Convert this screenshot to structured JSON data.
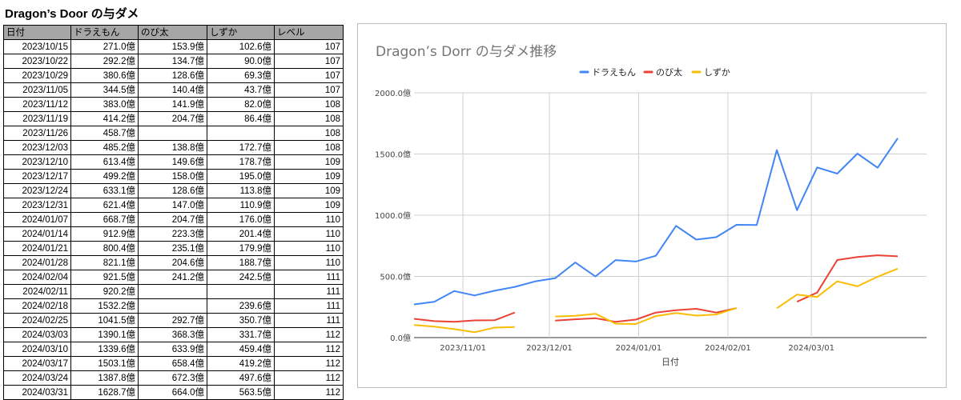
{
  "page_title": "Dragon’s Door の与ダメ",
  "table": {
    "headers": [
      "日付",
      "ドラえもん",
      "のび太",
      "しずか",
      "レベル"
    ],
    "rows": [
      [
        "2023/10/15",
        "271.0億",
        "153.9億",
        "102.6億",
        "107"
      ],
      [
        "2023/10/22",
        "292.2億",
        "134.7億",
        "90.0億",
        "107"
      ],
      [
        "2023/10/29",
        "380.6億",
        "128.6億",
        "69.3億",
        "107"
      ],
      [
        "2023/11/05",
        "344.5億",
        "140.4億",
        "43.7億",
        "107"
      ],
      [
        "2023/11/12",
        "383.0億",
        "141.9億",
        "82.0億",
        "108"
      ],
      [
        "2023/11/19",
        "414.2億",
        "204.7億",
        "86.4億",
        "108"
      ],
      [
        "2023/11/26",
        "458.7億",
        "",
        "",
        "108"
      ],
      [
        "2023/12/03",
        "485.2億",
        "138.8億",
        "172.7億",
        "108"
      ],
      [
        "2023/12/10",
        "613.4億",
        "149.6億",
        "178.7億",
        "109"
      ],
      [
        "2023/12/17",
        "499.2億",
        "158.0億",
        "195.0億",
        "109"
      ],
      [
        "2023/12/24",
        "633.1億",
        "128.6億",
        "113.8億",
        "109"
      ],
      [
        "2023/12/31",
        "621.4億",
        "147.0億",
        "110.9億",
        "109"
      ],
      [
        "2024/01/07",
        "668.7億",
        "204.7億",
        "176.0億",
        "110"
      ],
      [
        "2024/01/14",
        "912.9億",
        "223.3億",
        "201.4億",
        "110"
      ],
      [
        "2024/01/21",
        "800.4億",
        "235.1億",
        "179.9億",
        "110"
      ],
      [
        "2024/01/28",
        "821.1億",
        "204.6億",
        "188.7億",
        "110"
      ],
      [
        "2024/02/04",
        "921.5億",
        "241.2億",
        "242.5億",
        "111"
      ],
      [
        "2024/02/11",
        "920.2億",
        "",
        "",
        "111"
      ],
      [
        "2024/02/18",
        "1532.2億",
        "",
        "239.6億",
        "111"
      ],
      [
        "2024/02/25",
        "1041.5億",
        "292.7億",
        "350.7億",
        "111"
      ],
      [
        "2024/03/03",
        "1390.1億",
        "368.3億",
        "331.7億",
        "112"
      ],
      [
        "2024/03/10",
        "1339.6億",
        "633.9億",
        "459.4億",
        "112"
      ],
      [
        "2024/03/17",
        "1503.1億",
        "658.4億",
        "419.2億",
        "112"
      ],
      [
        "2024/03/24",
        "1387.8億",
        "672.3億",
        "497.6億",
        "112"
      ],
      [
        "2024/03/31",
        "1628.7億",
        "664.0億",
        "563.5億",
        "112"
      ]
    ]
  },
  "chart_data": {
    "type": "line",
    "title": "Dragon’s Dorr の与ダメ推移",
    "xlabel": "日付",
    "ylabel": "",
    "x": [
      "2023-10-15",
      "2023-10-22",
      "2023-10-29",
      "2023-11-05",
      "2023-11-12",
      "2023-11-19",
      "2023-11-26",
      "2023-12-03",
      "2023-12-10",
      "2023-12-17",
      "2023-12-24",
      "2023-12-31",
      "2024-01-07",
      "2024-01-14",
      "2024-01-21",
      "2024-01-28",
      "2024-02-04",
      "2024-02-11",
      "2024-02-18",
      "2024-02-25",
      "2024-03-03",
      "2024-03-10",
      "2024-03-17",
      "2024-03-24",
      "2024-03-31"
    ],
    "x_ticks": [
      {
        "date": "2023-11-01",
        "label": "2023/11/01"
      },
      {
        "date": "2023-12-01",
        "label": "2023/12/01"
      },
      {
        "date": "2024-01-01",
        "label": "2024/01/01"
      },
      {
        "date": "2024-02-01",
        "label": "2024/02/01"
      },
      {
        "date": "2024-03-01",
        "label": "2024/03/01"
      }
    ],
    "xlim": [
      "2023-10-15",
      "2024-04-10"
    ],
    "ylim": [
      0,
      2000
    ],
    "y_ticks": [
      {
        "value": 0,
        "label": "0.0億"
      },
      {
        "value": 500,
        "label": "500.0億"
      },
      {
        "value": 1000,
        "label": "1000.0億"
      },
      {
        "value": 1500,
        "label": "1500.0億"
      },
      {
        "value": 2000,
        "label": "2000.0億"
      }
    ],
    "grid": true,
    "legend_position": "top",
    "series": [
      {
        "name": "ドラえもん",
        "color": "#4285f4",
        "values": [
          271.0,
          292.2,
          380.6,
          344.5,
          383.0,
          414.2,
          458.7,
          485.2,
          613.4,
          499.2,
          633.1,
          621.4,
          668.7,
          912.9,
          800.4,
          821.1,
          921.5,
          920.2,
          1532.2,
          1041.5,
          1390.1,
          1339.6,
          1503.1,
          1387.8,
          1628.7
        ]
      },
      {
        "name": "のび太",
        "color": "#ea4335",
        "values": [
          153.9,
          134.7,
          128.6,
          140.4,
          141.9,
          204.7,
          null,
          138.8,
          149.6,
          158.0,
          128.6,
          147.0,
          204.7,
          223.3,
          235.1,
          204.6,
          241.2,
          null,
          null,
          292.7,
          368.3,
          633.9,
          658.4,
          672.3,
          664.0
        ]
      },
      {
        "name": "しずか",
        "color": "#fbbc04",
        "values": [
          102.6,
          90.0,
          69.3,
          43.7,
          82.0,
          86.4,
          null,
          172.7,
          178.7,
          195.0,
          113.8,
          110.9,
          176.0,
          201.4,
          179.9,
          188.7,
          242.5,
          null,
          239.6,
          350.7,
          331.7,
          459.4,
          419.2,
          497.6,
          563.5
        ]
      }
    ]
  }
}
